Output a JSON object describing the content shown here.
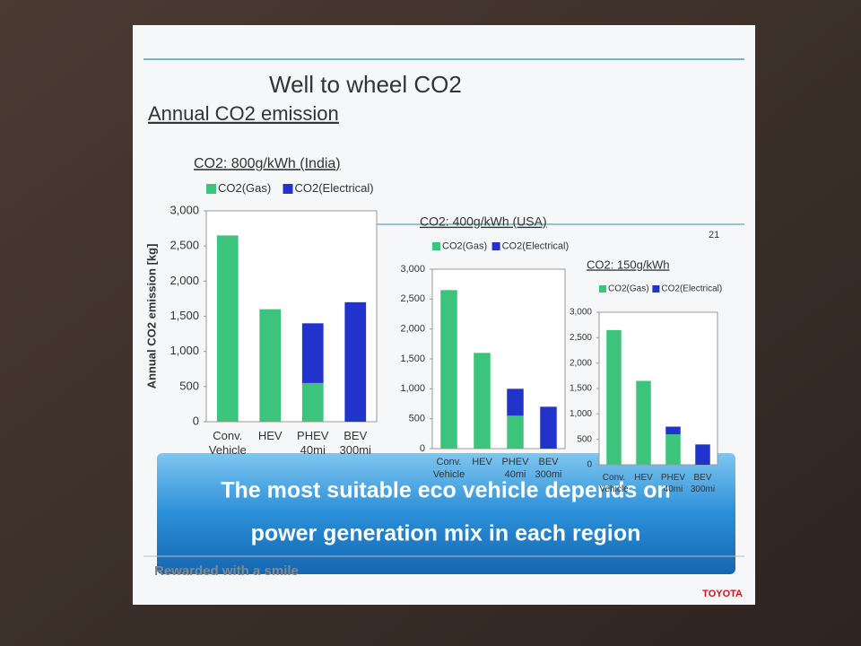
{
  "slide": {
    "title": "Well to wheel CO2",
    "subtitle": "Annual CO2 emission",
    "page_number": "21",
    "banner": [
      "The most suitable eco vehicle depends on",
      "power generation mix in each region"
    ],
    "footer": "Rewarded with a smile",
    "brand": "TOYOTA"
  },
  "chart_data": [
    {
      "type": "bar",
      "stacked": true,
      "title": "CO2: 800g/kWh (India)",
      "y_label": "Annual CO2 emission [kg]",
      "categories": [
        "Conv. Vehicle",
        "HEV",
        "PHEV 40mi",
        "BEV 300mi"
      ],
      "series": [
        {
          "name": "CO2(Gas)",
          "color": "#3cc47c",
          "values": [
            2650,
            1600,
            550,
            0
          ]
        },
        {
          "name": "CO2(Electrical)",
          "color": "#2233cc",
          "values": [
            0,
            0,
            850,
            1700
          ]
        }
      ],
      "ylim": [
        0,
        3000
      ],
      "yticks": [
        0,
        500,
        {
          "value": 1000,
          "label": "1,000"
        },
        {
          "value": 1500,
          "label": "1,500"
        },
        {
          "value": 2000,
          "label": "2,000"
        },
        {
          "value": 2500,
          "label": "2,500"
        },
        {
          "value": 3000,
          "label": "3,000"
        }
      ]
    },
    {
      "type": "bar",
      "stacked": true,
      "title": "CO2: 400g/kWh (USA)",
      "categories": [
        "Conv. Vehicle",
        "HEV",
        "PHEV 40mi",
        "BEV 300mi"
      ],
      "series": [
        {
          "name": "CO2(Gas)",
          "color": "#3cc47c",
          "values": [
            2650,
            1600,
            550,
            0
          ]
        },
        {
          "name": "CO2(Electrical)",
          "color": "#2233cc",
          "values": [
            0,
            0,
            450,
            700
          ]
        }
      ],
      "ylim": [
        0,
        3000
      ],
      "yticks": [
        0,
        500,
        {
          "value": 1000,
          "label": "1,000"
        },
        {
          "value": 1500,
          "label": "1,500"
        },
        {
          "value": 2000,
          "label": "2,000"
        },
        {
          "value": 2500,
          "label": "2,500"
        },
        {
          "value": 3000,
          "label": "3,000"
        }
      ]
    },
    {
      "type": "bar",
      "stacked": true,
      "title": "CO2: 150g/kWh",
      "categories": [
        "Conv. Vehicle",
        "HEV",
        "PHEV 40mi",
        "BEV 300mi"
      ],
      "series": [
        {
          "name": "CO2(Gas)",
          "color": "#3cc47c",
          "values": [
            2650,
            1650,
            600,
            0
          ]
        },
        {
          "name": "CO2(Electrical)",
          "color": "#2233cc",
          "values": [
            0,
            0,
            150,
            400
          ]
        }
      ],
      "ylim": [
        0,
        3000
      ],
      "yticks": [
        0,
        500,
        {
          "value": 1000,
          "label": "1,000"
        },
        {
          "value": 1500,
          "label": "1,500"
        },
        {
          "value": 2000,
          "label": "2,000"
        },
        {
          "value": 2500,
          "label": "2,500"
        },
        {
          "value": 3000,
          "label": "3,000"
        }
      ]
    }
  ]
}
